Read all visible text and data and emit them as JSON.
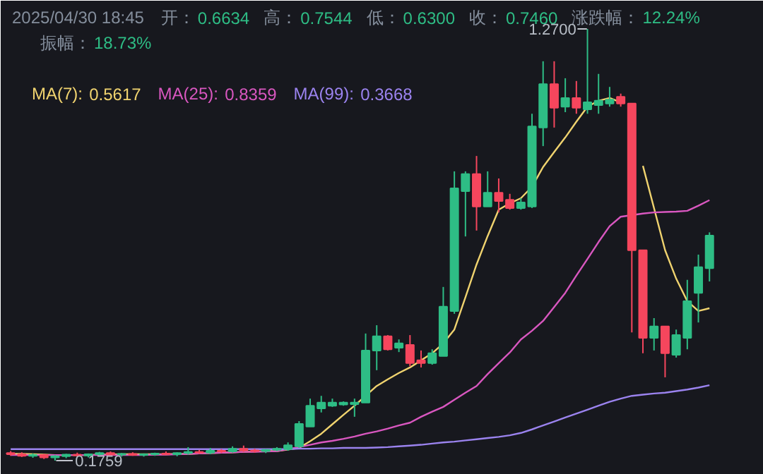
{
  "chart_data": {
    "type": "candlestick",
    "title": "2025/04/30 18:45",
    "annotations": [
      "开：0.6634",
      "高：0.7544",
      "低：0.6300",
      "收：0.7460",
      "涨跌幅：12.24%",
      "振幅：18.73%",
      "1.2700",
      "0.1759"
    ],
    "categories": [
      null,
      null,
      null,
      null,
      null,
      null,
      null,
      null,
      null,
      null,
      null,
      null,
      null,
      null,
      null,
      null,
      null,
      null,
      null,
      null,
      null,
      null,
      null,
      null,
      null,
      null,
      null,
      null,
      null,
      null,
      null,
      null,
      null,
      null,
      null,
      null,
      null,
      null,
      null,
      null,
      null,
      null,
      null,
      null,
      null,
      null,
      null,
      null,
      null,
      null,
      null,
      null,
      null,
      null,
      null,
      null,
      null,
      null,
      null,
      null,
      null,
      null,
      null,
      null
    ],
    "ohlc": [
      [
        0.195,
        0.2,
        0.188,
        0.192
      ],
      [
        0.192,
        0.197,
        0.185,
        0.188
      ],
      [
        0.188,
        0.194,
        0.183,
        0.19
      ],
      [
        0.19,
        0.193,
        0.18,
        0.184
      ],
      [
        0.184,
        0.19,
        0.1759,
        0.187
      ],
      [
        0.187,
        0.193,
        0.182,
        0.191
      ],
      [
        0.191,
        0.196,
        0.186,
        0.189
      ],
      [
        0.189,
        0.194,
        0.184,
        0.192
      ],
      [
        0.192,
        0.198,
        0.188,
        0.195
      ],
      [
        0.195,
        0.199,
        0.189,
        0.191
      ],
      [
        0.191,
        0.195,
        0.186,
        0.193
      ],
      [
        0.193,
        0.197,
        0.188,
        0.19
      ],
      [
        0.19,
        0.194,
        0.186,
        0.192
      ],
      [
        0.192,
        0.196,
        0.188,
        0.194
      ],
      [
        0.194,
        0.199,
        0.19,
        0.192
      ],
      [
        0.192,
        0.197,
        0.187,
        0.195
      ],
      [
        0.195,
        0.21,
        0.191,
        0.198
      ],
      [
        0.198,
        0.203,
        0.193,
        0.196
      ],
      [
        0.196,
        0.208,
        0.192,
        0.201
      ],
      [
        0.201,
        0.205,
        0.195,
        0.199
      ],
      [
        0.199,
        0.212,
        0.196,
        0.206
      ],
      [
        0.206,
        0.214,
        0.198,
        0.202
      ],
      [
        0.202,
        0.206,
        0.196,
        0.2
      ],
      [
        0.2,
        0.205,
        0.195,
        0.203
      ],
      [
        0.203,
        0.21,
        0.2,
        0.206
      ],
      [
        0.205,
        0.222,
        0.201,
        0.215
      ],
      [
        0.212,
        0.276,
        0.208,
        0.269
      ],
      [
        0.262,
        0.333,
        0.262,
        0.315
      ],
      [
        0.308,
        0.34,
        0.298,
        0.323
      ],
      [
        0.315,
        0.333,
        0.312,
        0.323
      ],
      [
        0.318,
        0.326,
        0.315,
        0.323
      ],
      [
        0.319,
        0.333,
        0.287,
        0.323
      ],
      [
        0.323,
        0.498,
        0.323,
        0.455
      ],
      [
        0.455,
        0.519,
        0.405,
        0.491
      ],
      [
        0.491,
        0.494,
        0.455,
        0.458
      ],
      [
        0.462,
        0.483,
        0.451,
        0.473
      ],
      [
        0.469,
        0.494,
        0.415,
        0.423
      ],
      [
        0.43,
        0.455,
        0.412,
        0.423
      ],
      [
        0.423,
        0.458,
        0.419,
        0.448
      ],
      [
        0.441,
        0.616,
        0.441,
        0.566
      ],
      [
        0.555,
        0.909,
        0.548,
        0.866
      ],
      [
        0.859,
        0.909,
        0.744,
        0.902
      ],
      [
        0.902,
        0.948,
        0.759,
        0.82
      ],
      [
        0.82,
        0.909,
        0.82,
        0.855
      ],
      [
        0.855,
        0.891,
        0.805,
        0.834
      ],
      [
        0.837,
        0.852,
        0.812,
        0.816
      ],
      [
        0.816,
        0.841,
        0.812,
        0.83
      ],
      [
        0.82,
        1.055,
        0.816,
        1.023
      ],
      [
        1.02,
        1.188,
        0.973,
        1.13
      ],
      [
        1.13,
        1.188,
        1.02,
        1.07
      ],
      [
        1.073,
        1.145,
        1.059,
        1.095
      ],
      [
        1.095,
        1.138,
        1.055,
        1.07
      ],
      [
        1.066,
        1.27,
        1.055,
        1.084
      ],
      [
        1.077,
        1.156,
        1.055,
        1.088
      ],
      [
        1.081,
        1.123,
        1.073,
        1.091
      ],
      [
        1.098,
        1.106,
        1.073,
        1.081
      ],
      [
        1.081,
        1.081,
        0.501,
        0.709
      ],
      [
        0.709,
        0.709,
        0.448,
        0.487
      ],
      [
        0.487,
        0.537,
        0.455,
        0.516
      ],
      [
        0.516,
        0.516,
        0.387,
        0.448
      ],
      [
        0.444,
        0.508,
        0.437,
        0.494
      ],
      [
        0.487,
        0.634,
        0.458,
        0.58
      ],
      [
        0.601,
        0.698,
        0.526,
        0.666
      ],
      [
        0.6634,
        0.7544,
        0.63,
        0.746
      ]
    ],
    "series": [
      {
        "type": "line",
        "name": "MA(7): 0.5617",
        "color": "#f0d36f",
        "values": [
          0.193,
          0.193,
          0.192,
          0.191,
          0.19,
          0.19,
          0.19,
          0.19,
          0.191,
          0.191,
          0.192,
          0.192,
          0.192,
          0.192,
          0.192,
          0.193,
          0.193,
          0.194,
          0.195,
          0.196,
          0.197,
          0.198,
          0.199,
          0.2,
          0.2,
          0.204,
          0.208,
          0.225,
          0.244,
          0.268,
          0.292,
          0.315,
          0.34,
          0.365,
          0.382,
          0.398,
          0.412,
          0.43,
          0.448,
          0.473,
          0.508,
          0.59,
          0.673,
          0.745,
          0.812,
          0.828,
          0.841,
          0.87,
          0.92,
          0.958,
          0.995,
          1.035,
          1.073,
          1.088,
          1.095,
          1.084,
          null,
          0.923,
          0.816,
          0.709,
          0.637,
          0.58,
          0.555,
          0.562
        ]
      },
      {
        "type": "line",
        "name": "MA(25): 0.8359",
        "color": "#d957c0",
        "values": [
          0.19,
          0.19,
          0.19,
          0.19,
          0.19,
          0.19,
          0.19,
          0.19,
          0.19,
          0.19,
          0.19,
          0.19,
          0.19,
          0.191,
          0.191,
          0.192,
          0.193,
          0.194,
          0.195,
          0.196,
          0.197,
          0.198,
          0.198,
          0.199,
          0.2,
          0.205,
          0.21,
          0.216,
          0.222,
          0.226,
          0.231,
          0.237,
          0.244,
          0.25,
          0.257,
          0.265,
          0.272,
          0.287,
          0.3,
          0.312,
          0.33,
          0.348,
          0.365,
          0.395,
          0.423,
          0.45,
          0.483,
          0.505,
          0.53,
          0.565,
          0.601,
          0.645,
          0.687,
          0.73,
          0.77,
          0.794,
          0.798,
          0.802,
          0.805,
          0.806,
          0.807,
          0.809,
          0.822,
          0.836
        ]
      },
      {
        "type": "line",
        "name": "MA(99): 0.3668",
        "color": "#9b83ef",
        "values": [
          0.205,
          0.205,
          0.205,
          0.205,
          0.205,
          0.205,
          0.205,
          0.205,
          0.205,
          0.205,
          0.205,
          0.205,
          0.205,
          0.205,
          0.205,
          0.205,
          0.205,
          0.205,
          0.205,
          0.205,
          0.205,
          0.205,
          0.205,
          0.205,
          0.205,
          0.205,
          0.206,
          0.206,
          0.207,
          0.207,
          0.208,
          0.208,
          0.208,
          0.209,
          0.21,
          0.212,
          0.214,
          0.216,
          0.219,
          0.222,
          0.224,
          0.227,
          0.23,
          0.233,
          0.236,
          0.24,
          0.246,
          0.255,
          0.265,
          0.275,
          0.285,
          0.295,
          0.305,
          0.315,
          0.325,
          0.333,
          0.34,
          0.343,
          0.346,
          0.348,
          0.352,
          0.356,
          0.361,
          0.367
        ]
      }
    ]
  }
}
